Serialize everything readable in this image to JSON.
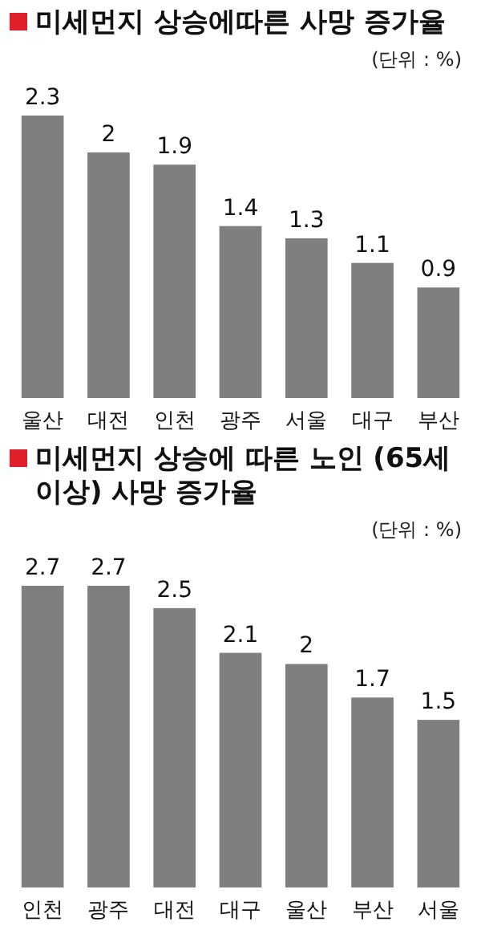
{
  "chart_data": [
    {
      "type": "bar",
      "title": "미세먼지 상승에따른 사망 증가율",
      "annotations": [
        "(단위 : %)"
      ],
      "categories": [
        "울산",
        "대전",
        "인천",
        "광주",
        "서울",
        "대구",
        "부산"
      ],
      "values": [
        2.3,
        2,
        1.9,
        1.4,
        1.3,
        1.1,
        0.9
      ],
      "color": "#7f7f7f",
      "data_labels": true
    },
    {
      "type": "bar",
      "title": "미세먼지 상승에 따른 노인 (65세 이상) 사망 증가율",
      "annotations": [
        "(단위 : %)"
      ],
      "categories": [
        "인천",
        "광주",
        "대전",
        "대구",
        "울산",
        "부산",
        "서울"
      ],
      "values": [
        2.7,
        2.7,
        2.5,
        2.1,
        2,
        1.7,
        1.5
      ],
      "color": "#7f7f7f",
      "data_labels": true
    }
  ]
}
